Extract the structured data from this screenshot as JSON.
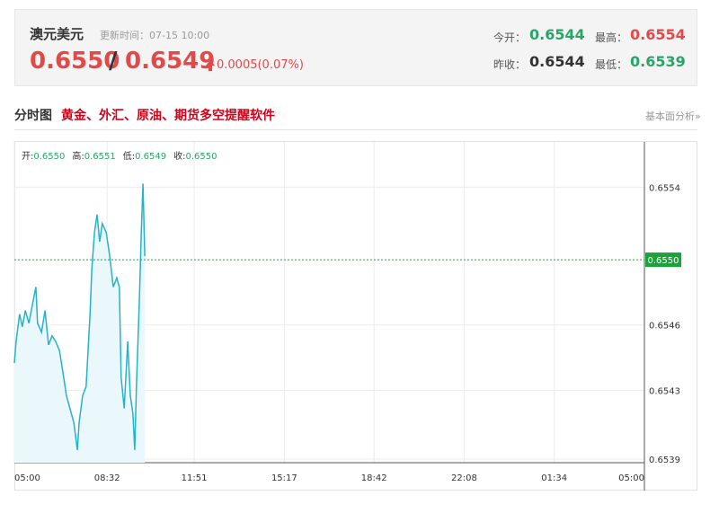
{
  "header": {
    "symbol": "澳元美元",
    "update_time": "更新时间：07-15 10:00",
    "bid": "0.6550",
    "separator": "/",
    "ask": "0.6549",
    "change": "0.0005(0.07%)",
    "stats": [
      {
        "label": "今开：",
        "value": "0.6544"
      },
      {
        "label": "最高：",
        "value": "0.6554"
      },
      {
        "label": "昨收：",
        "value": "0.6544"
      },
      {
        "label": "最低：",
        "value": "0.6539"
      }
    ]
  },
  "section": {
    "title": "分时图",
    "promo": "黄金、外汇、原油、期货多空提醒软件",
    "link": "基本面分析»"
  },
  "chart_data": {
    "type": "line",
    "color": "#26b2c8",
    "area_color": "#eaf7fb",
    "summary": [
      {
        "label": "开:",
        "value": "0.6550"
      },
      {
        "label": "高:",
        "value": "0.6551"
      },
      {
        "label": "低:",
        "value": "0.6549"
      },
      {
        "label": "收:",
        "value": "0.6550"
      }
    ],
    "x": [
      0,
      4,
      12,
      18,
      25,
      33,
      41,
      49,
      53,
      62,
      70,
      78,
      86,
      94,
      103,
      111,
      119,
      127,
      136,
      144,
      148,
      156,
      164,
      173,
      177,
      183,
      189,
      195,
      201,
      210,
      218,
      226,
      234,
      240,
      244,
      251,
      259,
      265,
      271,
      275,
      279,
      286,
      290,
      294,
      298
    ],
    "values": [
      0.65443,
      0.65455,
      0.6547,
      0.65463,
      0.65472,
      0.65465,
      0.65475,
      0.65485,
      0.65465,
      0.6546,
      0.65472,
      0.65453,
      0.65458,
      0.65455,
      0.6545,
      0.65438,
      0.65425,
      0.65418,
      0.6541,
      0.65395,
      0.6541,
      0.65425,
      0.6543,
      0.6547,
      0.65495,
      0.65515,
      0.65525,
      0.6551,
      0.6552,
      0.65515,
      0.65502,
      0.65485,
      0.6549,
      0.65485,
      0.65435,
      0.65418,
      0.65455,
      0.65425,
      0.65415,
      0.65395,
      0.6543,
      0.6548,
      0.65515,
      0.65542,
      0.65502
    ],
    "xlim": [
      0,
      1440
    ],
    "xticks": [
      {
        "value": 0,
        "label": "05:00"
      },
      {
        "value": 212,
        "label": "08:32"
      },
      {
        "value": 411,
        "label": "11:51"
      },
      {
        "value": 617,
        "label": "15:17"
      },
      {
        "value": 822,
        "label": "18:42"
      },
      {
        "value": 1028,
        "label": "22:08"
      },
      {
        "value": 1234,
        "label": "01:34"
      },
      {
        "value": 1440,
        "label": "05:00"
      }
    ],
    "ylim": [
      0.65388,
      0.65565
    ],
    "yticks": [
      {
        "value": 0.6554,
        "label": "0.6554"
      },
      {
        "value": 0.65464,
        "label": "0.6546"
      },
      {
        "value": 0.65428,
        "label": "0.6543"
      },
      {
        "value": 0.6539,
        "label": "0.6539"
      }
    ],
    "last_price": {
      "value": 0.655,
      "label": "0.6550"
    },
    "grid": true
  }
}
